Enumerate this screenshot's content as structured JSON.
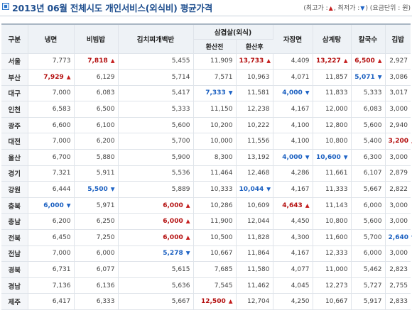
{
  "header": {
    "title": "2013년 06월 전체시도 개인서비스(외식비) 평균가격",
    "legend_max_label": "최고가 :",
    "legend_max_icon": "arrow-up-icon",
    "legend_min_label": "최저가 :",
    "legend_min_icon": "arrow-down-icon",
    "legend_unit": "요금단위 : 원"
  },
  "table": {
    "col_region": "구분",
    "col_naengmyeon": "냉면",
    "col_bibimbap": "비빔밥",
    "col_kimchi_jjigae": "김치찌개백반",
    "col_samgyeopsal": "삼겹살(외식)",
    "col_sam_conv_before": "환산전",
    "col_sam_conv_after": "환산후",
    "col_jajangmyeon": "자장면",
    "col_samgyetang": "삼계탕",
    "col_kalguksu": "칼국수",
    "col_gimbap": "김밥",
    "rows": [
      {
        "region": "서울",
        "cells": [
          {
            "v": "7,773",
            "s": ""
          },
          {
            "v": "7,818",
            "s": "max"
          },
          {
            "v": "5,455",
            "s": ""
          },
          {
            "v": "11,909",
            "s": ""
          },
          {
            "v": "13,733",
            "s": "max"
          },
          {
            "v": "4,409",
            "s": ""
          },
          {
            "v": "13,227",
            "s": "max"
          },
          {
            "v": "6,500",
            "s": "max"
          },
          {
            "v": "2,927",
            "s": ""
          }
        ]
      },
      {
        "region": "부산",
        "cells": [
          {
            "v": "7,929",
            "s": "max"
          },
          {
            "v": "6,129",
            "s": ""
          },
          {
            "v": "5,714",
            "s": ""
          },
          {
            "v": "7,571",
            "s": ""
          },
          {
            "v": "10,963",
            "s": ""
          },
          {
            "v": "4,071",
            "s": ""
          },
          {
            "v": "11,857",
            "s": ""
          },
          {
            "v": "5,071",
            "s": "min"
          },
          {
            "v": "3,086",
            "s": ""
          }
        ]
      },
      {
        "region": "대구",
        "cells": [
          {
            "v": "7,000",
            "s": ""
          },
          {
            "v": "6,083",
            "s": ""
          },
          {
            "v": "5,417",
            "s": ""
          },
          {
            "v": "7,333",
            "s": "min"
          },
          {
            "v": "11,581",
            "s": ""
          },
          {
            "v": "4,000",
            "s": "min"
          },
          {
            "v": "11,833",
            "s": ""
          },
          {
            "v": "5,333",
            "s": ""
          },
          {
            "v": "3,017",
            "s": ""
          }
        ]
      },
      {
        "region": "인천",
        "cells": [
          {
            "v": "6,583",
            "s": ""
          },
          {
            "v": "6,500",
            "s": ""
          },
          {
            "v": "5,333",
            "s": ""
          },
          {
            "v": "11,150",
            "s": ""
          },
          {
            "v": "12,238",
            "s": ""
          },
          {
            "v": "4,167",
            "s": ""
          },
          {
            "v": "12,000",
            "s": ""
          },
          {
            "v": "6,083",
            "s": ""
          },
          {
            "v": "3,000",
            "s": ""
          }
        ]
      },
      {
        "region": "광주",
        "cells": [
          {
            "v": "6,600",
            "s": ""
          },
          {
            "v": "6,100",
            "s": ""
          },
          {
            "v": "5,600",
            "s": ""
          },
          {
            "v": "10,200",
            "s": ""
          },
          {
            "v": "10,222",
            "s": ""
          },
          {
            "v": "4,100",
            "s": ""
          },
          {
            "v": "12,800",
            "s": ""
          },
          {
            "v": "5,600",
            "s": ""
          },
          {
            "v": "2,940",
            "s": ""
          }
        ]
      },
      {
        "region": "대전",
        "cells": [
          {
            "v": "7,000",
            "s": ""
          },
          {
            "v": "6,200",
            "s": ""
          },
          {
            "v": "5,700",
            "s": ""
          },
          {
            "v": "10,000",
            "s": ""
          },
          {
            "v": "11,556",
            "s": ""
          },
          {
            "v": "4,100",
            "s": ""
          },
          {
            "v": "10,800",
            "s": ""
          },
          {
            "v": "5,400",
            "s": ""
          },
          {
            "v": "3,200",
            "s": "max"
          }
        ]
      },
      {
        "region": "울산",
        "cells": [
          {
            "v": "6,700",
            "s": ""
          },
          {
            "v": "5,880",
            "s": ""
          },
          {
            "v": "5,900",
            "s": ""
          },
          {
            "v": "8,300",
            "s": ""
          },
          {
            "v": "13,192",
            "s": ""
          },
          {
            "v": "4,000",
            "s": "min"
          },
          {
            "v": "10,600",
            "s": "min"
          },
          {
            "v": "6,300",
            "s": ""
          },
          {
            "v": "3,000",
            "s": ""
          }
        ]
      },
      {
        "region": "경기",
        "cells": [
          {
            "v": "7,321",
            "s": ""
          },
          {
            "v": "5,911",
            "s": ""
          },
          {
            "v": "5,536",
            "s": ""
          },
          {
            "v": "11,464",
            "s": ""
          },
          {
            "v": "12,468",
            "s": ""
          },
          {
            "v": "4,286",
            "s": ""
          },
          {
            "v": "11,661",
            "s": ""
          },
          {
            "v": "6,107",
            "s": ""
          },
          {
            "v": "2,879",
            "s": ""
          }
        ]
      },
      {
        "region": "강원",
        "cells": [
          {
            "v": "6,444",
            "s": ""
          },
          {
            "v": "5,500",
            "s": "min"
          },
          {
            "v": "5,889",
            "s": ""
          },
          {
            "v": "10,333",
            "s": ""
          },
          {
            "v": "10,044",
            "s": "min"
          },
          {
            "v": "4,167",
            "s": ""
          },
          {
            "v": "11,333",
            "s": ""
          },
          {
            "v": "5,667",
            "s": ""
          },
          {
            "v": "2,822",
            "s": ""
          }
        ]
      },
      {
        "region": "충북",
        "cells": [
          {
            "v": "6,000",
            "s": "min"
          },
          {
            "v": "5,971",
            "s": ""
          },
          {
            "v": "6,000",
            "s": "max"
          },
          {
            "v": "10,286",
            "s": ""
          },
          {
            "v": "10,609",
            "s": ""
          },
          {
            "v": "4,643",
            "s": "max"
          },
          {
            "v": "11,143",
            "s": ""
          },
          {
            "v": "6,000",
            "s": ""
          },
          {
            "v": "3,000",
            "s": ""
          }
        ]
      },
      {
        "region": "충남",
        "cells": [
          {
            "v": "6,200",
            "s": ""
          },
          {
            "v": "6,250",
            "s": ""
          },
          {
            "v": "6,000",
            "s": "max"
          },
          {
            "v": "11,900",
            "s": ""
          },
          {
            "v": "12,044",
            "s": ""
          },
          {
            "v": "4,450",
            "s": ""
          },
          {
            "v": "10,800",
            "s": ""
          },
          {
            "v": "5,600",
            "s": ""
          },
          {
            "v": "3,000",
            "s": ""
          }
        ]
      },
      {
        "region": "전북",
        "cells": [
          {
            "v": "6,450",
            "s": ""
          },
          {
            "v": "7,250",
            "s": ""
          },
          {
            "v": "6,000",
            "s": "max"
          },
          {
            "v": "10,500",
            "s": ""
          },
          {
            "v": "11,828",
            "s": ""
          },
          {
            "v": "4,300",
            "s": ""
          },
          {
            "v": "11,600",
            "s": ""
          },
          {
            "v": "5,700",
            "s": ""
          },
          {
            "v": "2,640",
            "s": "min"
          }
        ]
      },
      {
        "region": "전남",
        "cells": [
          {
            "v": "7,000",
            "s": ""
          },
          {
            "v": "6,000",
            "s": ""
          },
          {
            "v": "5,278",
            "s": "min"
          },
          {
            "v": "10,667",
            "s": ""
          },
          {
            "v": "11,864",
            "s": ""
          },
          {
            "v": "4,167",
            "s": ""
          },
          {
            "v": "12,333",
            "s": ""
          },
          {
            "v": "6,000",
            "s": ""
          },
          {
            "v": "3,000",
            "s": ""
          }
        ]
      },
      {
        "region": "경북",
        "cells": [
          {
            "v": "6,731",
            "s": ""
          },
          {
            "v": "6,077",
            "s": ""
          },
          {
            "v": "5,615",
            "s": ""
          },
          {
            "v": "7,685",
            "s": ""
          },
          {
            "v": "11,580",
            "s": ""
          },
          {
            "v": "4,077",
            "s": ""
          },
          {
            "v": "11,000",
            "s": ""
          },
          {
            "v": "5,462",
            "s": ""
          },
          {
            "v": "2,823",
            "s": ""
          }
        ]
      },
      {
        "region": "경남",
        "cells": [
          {
            "v": "7,136",
            "s": ""
          },
          {
            "v": "6,136",
            "s": ""
          },
          {
            "v": "5,636",
            "s": ""
          },
          {
            "v": "7,545",
            "s": ""
          },
          {
            "v": "11,462",
            "s": ""
          },
          {
            "v": "4,045",
            "s": ""
          },
          {
            "v": "12,273",
            "s": ""
          },
          {
            "v": "5,727",
            "s": ""
          },
          {
            "v": "2,755",
            "s": ""
          }
        ]
      },
      {
        "region": "제주",
        "cells": [
          {
            "v": "6,417",
            "s": ""
          },
          {
            "v": "6,333",
            "s": ""
          },
          {
            "v": "5,667",
            "s": ""
          },
          {
            "v": "12,500",
            "s": "max"
          },
          {
            "v": "12,704",
            "s": ""
          },
          {
            "v": "4,250",
            "s": ""
          },
          {
            "v": "10,667",
            "s": ""
          },
          {
            "v": "5,917",
            "s": ""
          },
          {
            "v": "2,833",
            "s": ""
          }
        ]
      }
    ]
  }
}
